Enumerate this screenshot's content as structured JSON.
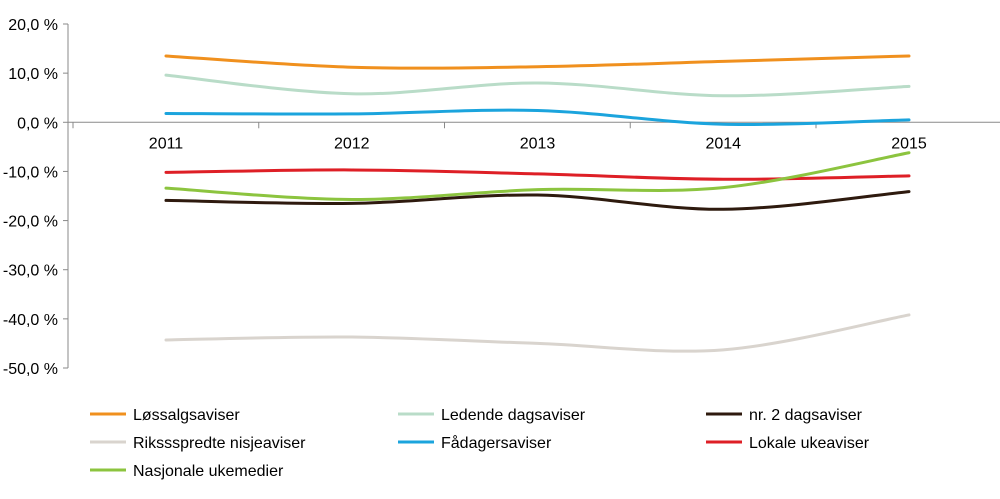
{
  "chart_data": {
    "type": "line",
    "categories": [
      "2011",
      "2012",
      "2013",
      "2014",
      "2015"
    ],
    "y_ticks": [
      "20,0 %",
      "10,0 %",
      "0,0 %",
      "-10,0 %",
      "-20,0 %",
      "-30,0 %",
      "-40,0 %",
      "-50,0 %"
    ],
    "ylim": [
      -50,
      20
    ],
    "grid": false,
    "legend_position": "bottom",
    "series": [
      {
        "name": "Løssalgsaviser",
        "color": "#F0901E",
        "values": [
          13.5,
          11.2,
          11.3,
          12.4,
          13.5
        ]
      },
      {
        "name": "Ledende dagsaviser",
        "color": "#B9DCC8",
        "values": [
          9.6,
          5.8,
          8.0,
          5.4,
          7.3
        ]
      },
      {
        "name": "nr. 2 dagsaviser",
        "color": "#2E1A0E",
        "values": [
          -15.9,
          -16.5,
          -14.8,
          -17.7,
          -14.1
        ]
      },
      {
        "name": "Rikssspredte nisjeaviser",
        "color": "#D9D4CE",
        "values": [
          -44.3,
          -43.7,
          -45.0,
          -46.3,
          -39.2
        ]
      },
      {
        "name": "Fådagersaviser",
        "color": "#1BA4DD",
        "values": [
          1.8,
          1.7,
          2.4,
          -0.4,
          0.5
        ]
      },
      {
        "name": "Lokale ukeaviser",
        "color": "#DE1F26",
        "values": [
          -10.2,
          -9.7,
          -10.5,
          -11.6,
          -10.9
        ]
      },
      {
        "name": "Nasjonale ukemedier",
        "color": "#8CC43F",
        "values": [
          -13.4,
          -15.7,
          -13.7,
          -13.3,
          -6.2
        ]
      }
    ]
  }
}
